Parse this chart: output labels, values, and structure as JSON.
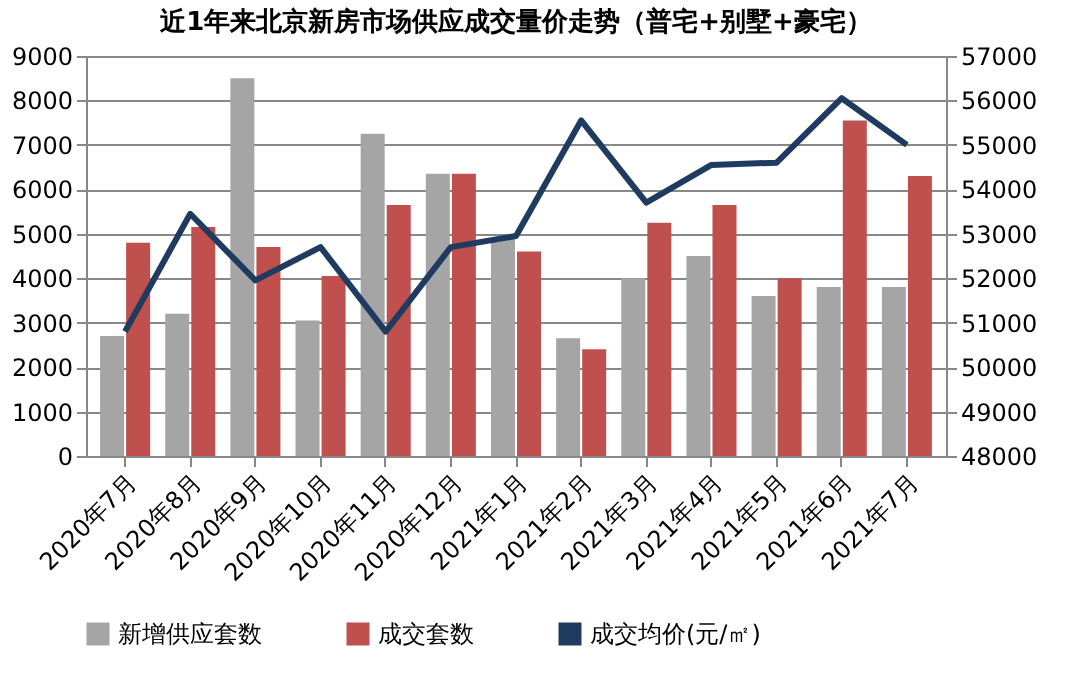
{
  "chart_data": {
    "type": "bar",
    "title": "近1年来北京新房市场供应成交量价走势（普宅+别墅+豪宅）",
    "categories": [
      "2020年7月",
      "2020年8月",
      "2020年9月",
      "2020年10月",
      "2020年11月",
      "2020年12月",
      "2021年1月",
      "2021年2月",
      "2021年3月",
      "2021年4月",
      "2021年5月",
      "2021年6月",
      "2021年7月"
    ],
    "series": [
      {
        "name": "新增供应套数",
        "color": "#a5a5a5",
        "values": [
          2700,
          3200,
          8500,
          3050,
          7250,
          6350,
          4900,
          2650,
          4000,
          4500,
          3600,
          3800,
          3800
        ]
      },
      {
        "name": "成交套数",
        "color": "#c0504d",
        "values": [
          4800,
          5150,
          4700,
          4050,
          5650,
          6350,
          4600,
          2400,
          5250,
          5650,
          4000,
          7550,
          6300
        ]
      },
      {
        "name": "成交均价(元/㎡)",
        "type": "line",
        "axis": "y2",
        "color": "#1f3b5f",
        "values": [
          50800,
          53450,
          51950,
          52700,
          50800,
          52700,
          52950,
          55550,
          53700,
          54550,
          54600,
          56050,
          55000
        ]
      }
    ],
    "ylim": [
      0,
      9000
    ],
    "yticks": [
      0,
      1000,
      2000,
      3000,
      4000,
      5000,
      6000,
      7000,
      8000,
      9000
    ],
    "y2lim": [
      48000,
      57000
    ],
    "y2ticks": [
      48000,
      49000,
      50000,
      51000,
      52000,
      53000,
      54000,
      55000,
      56000,
      57000
    ],
    "grid": "y",
    "legend": "bottom",
    "marker": "none",
    "line_style": "solid"
  }
}
